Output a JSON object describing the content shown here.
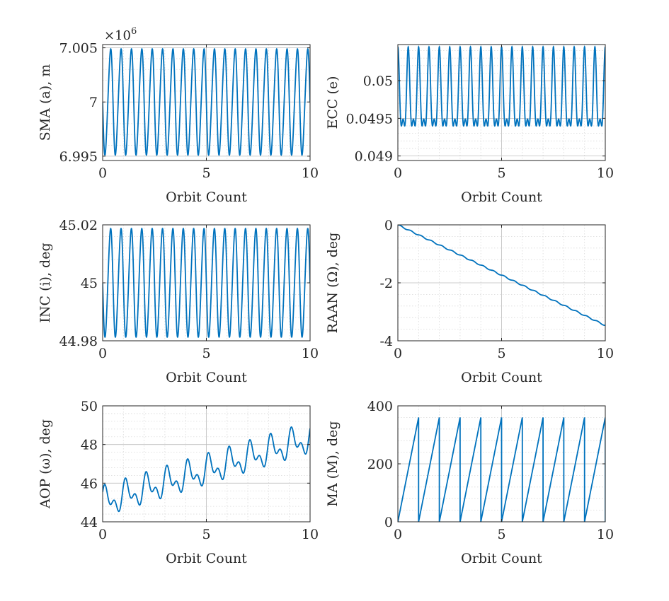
{
  "chart_data": [
    {
      "type": "line",
      "ylabel": "SMA (a), m",
      "xlabel": "Orbit Count",
      "exponent_label": "×10",
      "exponent_power": "6",
      "xlim": [
        0,
        10
      ],
      "ylim": [
        6994600,
        7005300
      ],
      "xticks": [
        0,
        5,
        10
      ],
      "yticks": [
        6995000,
        7000000,
        7005000
      ],
      "ytick_labels": [
        "6.995",
        "7",
        "7.005"
      ],
      "grid": true,
      "model": {
        "kind": "osc",
        "baseline": 7000000,
        "amplitude": 4800,
        "omega_rad_per_orbit": 12.566,
        "phase_rad": 3.14159,
        "harmonic2_amp": 500,
        "trend_per_orbit": 0
      },
      "series": [
        {
          "color": "#0072BD"
        }
      ]
    },
    {
      "type": "line",
      "ylabel": "ECC (e)",
      "xlabel": "Orbit Count",
      "xlim": [
        0,
        10
      ],
      "ylim": [
        0.04894,
        0.05048
      ],
      "xticks": [
        0,
        5,
        10
      ],
      "yticks": [
        0.049,
        0.0495,
        0.05
      ],
      "ytick_labels": [
        "0.049",
        "0.0495",
        "0.05"
      ],
      "grid": true,
      "model": {
        "kind": "osc",
        "baseline": 0.04975,
        "amplitude": 0.00048,
        "omega_rad_per_orbit": 12.566,
        "phase_rad": 1.5708,
        "harmonic2_amp": 0.00022,
        "trend_per_orbit": 0
      },
      "series": [
        {
          "color": "#0072BD"
        }
      ]
    },
    {
      "type": "line",
      "ylabel": "INC (i), deg",
      "xlabel": "Orbit Count",
      "xlim": [
        0,
        10
      ],
      "ylim": [
        44.98,
        45.02
      ],
      "xticks": [
        0,
        5,
        10
      ],
      "yticks": [
        44.98,
        45,
        45.02
      ],
      "ytick_labels": [
        "44.98",
        "45",
        "45.02"
      ],
      "grid": true,
      "model": {
        "kind": "osc",
        "baseline": 45.0,
        "amplitude": 0.0185,
        "omega_rad_per_orbit": 12.566,
        "phase_rad": 3.14159,
        "harmonic2_amp": 0.0015,
        "trend_per_orbit": 0
      },
      "series": [
        {
          "color": "#0072BD"
        }
      ]
    },
    {
      "type": "line",
      "ylabel": "RAAN (Ω), deg",
      "xlabel": "Orbit Count",
      "xlim": [
        0,
        10
      ],
      "ylim": [
        -4,
        0
      ],
      "xticks": [
        0,
        5,
        10
      ],
      "yticks": [
        -4,
        -2,
        0
      ],
      "ytick_labels": [
        "-4",
        "-2",
        "0"
      ],
      "grid": true,
      "model": {
        "kind": "osc",
        "baseline": 0,
        "amplitude": 0.02,
        "omega_rad_per_orbit": 12.566,
        "phase_rad": 0,
        "harmonic2_amp": 0,
        "trend_per_orbit": -0.347
      },
      "series": [
        {
          "color": "#0072BD"
        }
      ]
    },
    {
      "type": "line",
      "ylabel": "AOP (ω), deg",
      "xlabel": "Orbit Count",
      "xlim": [
        0,
        10
      ],
      "ylim": [
        44,
        50
      ],
      "xticks": [
        0,
        5,
        10
      ],
      "yticks": [
        44,
        46,
        48,
        50
      ],
      "ytick_labels": [
        "44",
        "46",
        "48",
        "50"
      ],
      "grid": true,
      "model": {
        "kind": "osc",
        "baseline": 45.0,
        "amplitude": 0.55,
        "omega_rad_per_orbit": 6.2832,
        "phase_rad": 0.6,
        "harmonic2_amp": 0.4,
        "trend_per_orbit": 0.33
      },
      "series": [
        {
          "color": "#0072BD"
        }
      ]
    },
    {
      "type": "line",
      "ylabel": "MA (M), deg",
      "xlabel": "Orbit Count",
      "xlim": [
        0,
        10
      ],
      "ylim": [
        0,
        400
      ],
      "xticks": [
        0,
        5,
        10
      ],
      "yticks": [
        0,
        200,
        400
      ],
      "ytick_labels": [
        "0",
        "200",
        "400"
      ],
      "grid": true,
      "model": {
        "kind": "sawtooth",
        "period_orbits": 1,
        "max": 360
      },
      "series": [
        {
          "color": "#0072BD"
        }
      ]
    }
  ]
}
